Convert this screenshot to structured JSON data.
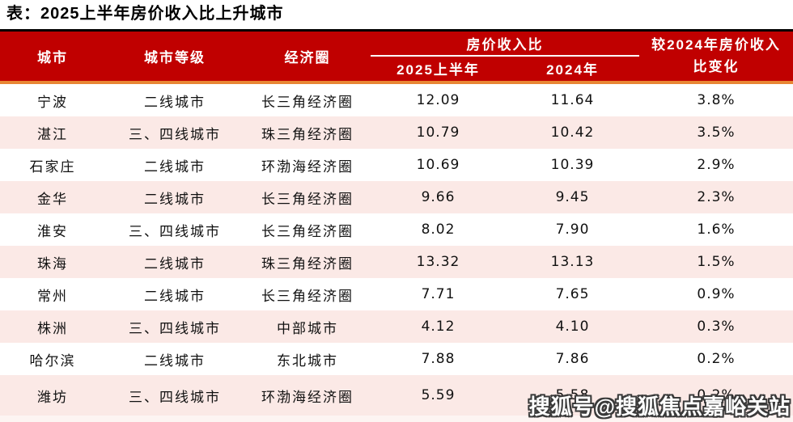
{
  "title": "表：2025上半年房价收入比上升城市",
  "colors": {
    "header_red": "#c00000",
    "accent_orange": "#e88634",
    "row_pink": "#fbe9e6"
  },
  "table": {
    "columns": [
      "城市",
      "城市等级",
      "经济圈"
    ],
    "group_header": "房价收入比",
    "sub_columns": [
      "2025上半年",
      "2024年"
    ],
    "change_header": "较2024年房价收入比变化",
    "rows": [
      {
        "city": "宁波",
        "tier": "二线城市",
        "circle": "长三角经济圈",
        "h1_2025": "12.09",
        "y2024": "11.64",
        "change": "3.8%"
      },
      {
        "city": "湛江",
        "tier": "三、四线城市",
        "circle": "珠三角经济圈",
        "h1_2025": "10.79",
        "y2024": "10.42",
        "change": "3.5%"
      },
      {
        "city": "石家庄",
        "tier": "二线城市",
        "circle": "环渤海经济圈",
        "h1_2025": "10.69",
        "y2024": "10.39",
        "change": "2.9%"
      },
      {
        "city": "金华",
        "tier": "二线城市",
        "circle": "长三角经济圈",
        "h1_2025": "9.66",
        "y2024": "9.45",
        "change": "2.3%"
      },
      {
        "city": "淮安",
        "tier": "三、四线城市",
        "circle": "长三角经济圈",
        "h1_2025": "8.02",
        "y2024": "7.90",
        "change": "1.6%"
      },
      {
        "city": "珠海",
        "tier": "二线城市",
        "circle": "珠三角经济圈",
        "h1_2025": "13.32",
        "y2024": "13.13",
        "change": "1.5%"
      },
      {
        "city": "常州",
        "tier": "二线城市",
        "circle": "长三角经济圈",
        "h1_2025": "7.71",
        "y2024": "7.65",
        "change": "0.9%"
      },
      {
        "city": "株洲",
        "tier": "三、四线城市",
        "circle": "中部城市",
        "h1_2025": "4.12",
        "y2024": "4.10",
        "change": "0.3%"
      },
      {
        "city": "哈尔滨",
        "tier": "二线城市",
        "circle": "东北城市",
        "h1_2025": "7.88",
        "y2024": "7.86",
        "change": "0.2%"
      },
      {
        "city": "潍坊",
        "tier": "三、四线城市",
        "circle": "环渤海经济圈",
        "h1_2025": "5.59",
        "y2024": "5.58",
        "change": "0.2%"
      }
    ]
  },
  "watermark": "搜狐号@搜狐焦点嘉峪关站"
}
